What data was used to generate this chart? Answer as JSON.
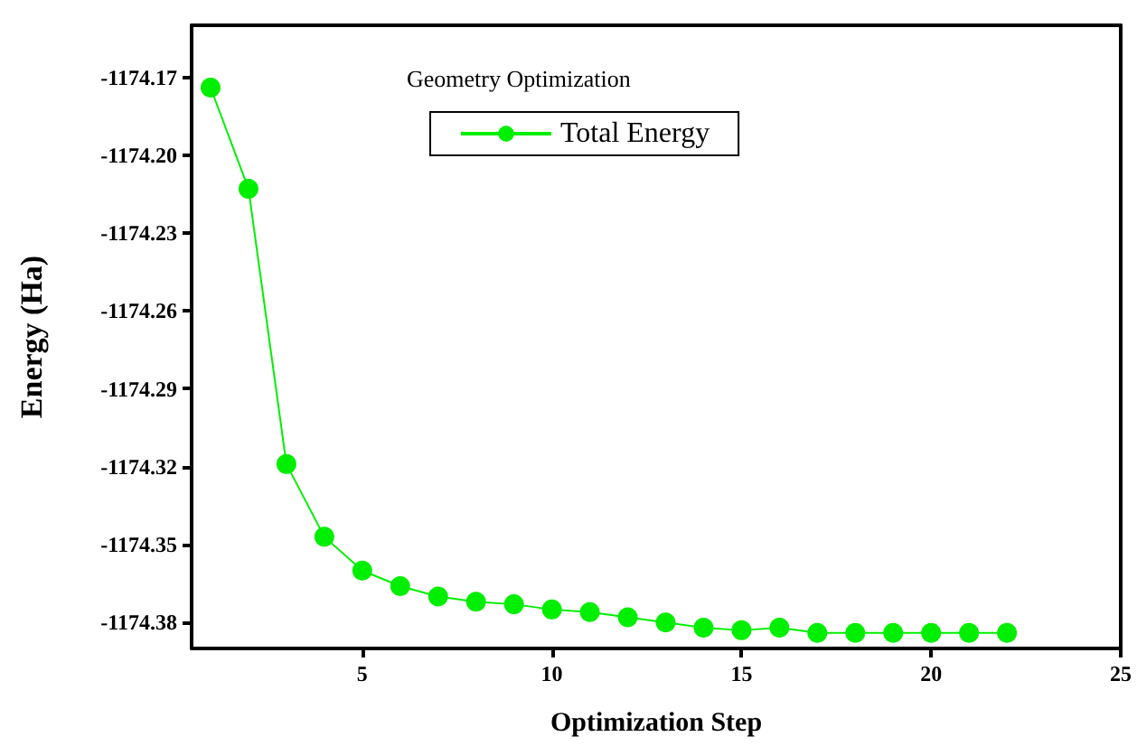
{
  "chart_data": {
    "type": "line",
    "title": "Geometry Optimization",
    "xlabel": "Optimization Step",
    "ylabel": "Energy (Ha)",
    "x": [
      1,
      2,
      3,
      4,
      5,
      6,
      7,
      8,
      9,
      10,
      11,
      12,
      13,
      14,
      15,
      16,
      17,
      18,
      19,
      20,
      21,
      22
    ],
    "series": [
      {
        "name": "Total Energy",
        "color": "#00ee00",
        "values": [
          -1174.174,
          -1174.213,
          -1174.319,
          -1174.347,
          -1174.36,
          -1174.366,
          -1174.37,
          -1174.372,
          -1174.373,
          -1174.375,
          -1174.376,
          -1174.378,
          -1174.38,
          -1174.382,
          -1174.383,
          -1174.382,
          -1174.384,
          -1174.384,
          -1174.384,
          -1174.384,
          -1174.384,
          -1174.384
        ]
      }
    ],
    "xlim": [
      0.5,
      25
    ],
    "xticks": [
      5,
      10,
      15,
      20,
      25
    ],
    "ylim": [
      -1174.39,
      -1174.15
    ],
    "yticks": [
      -1174.38,
      -1174.35,
      -1174.32,
      -1174.29,
      -1174.26,
      -1174.23,
      {
        "value": -1174.2,
        "label": "-1174.20"
      },
      -1174.17
    ],
    "grid": false,
    "legend": "top",
    "marker": "circle",
    "line_style": "solid"
  }
}
